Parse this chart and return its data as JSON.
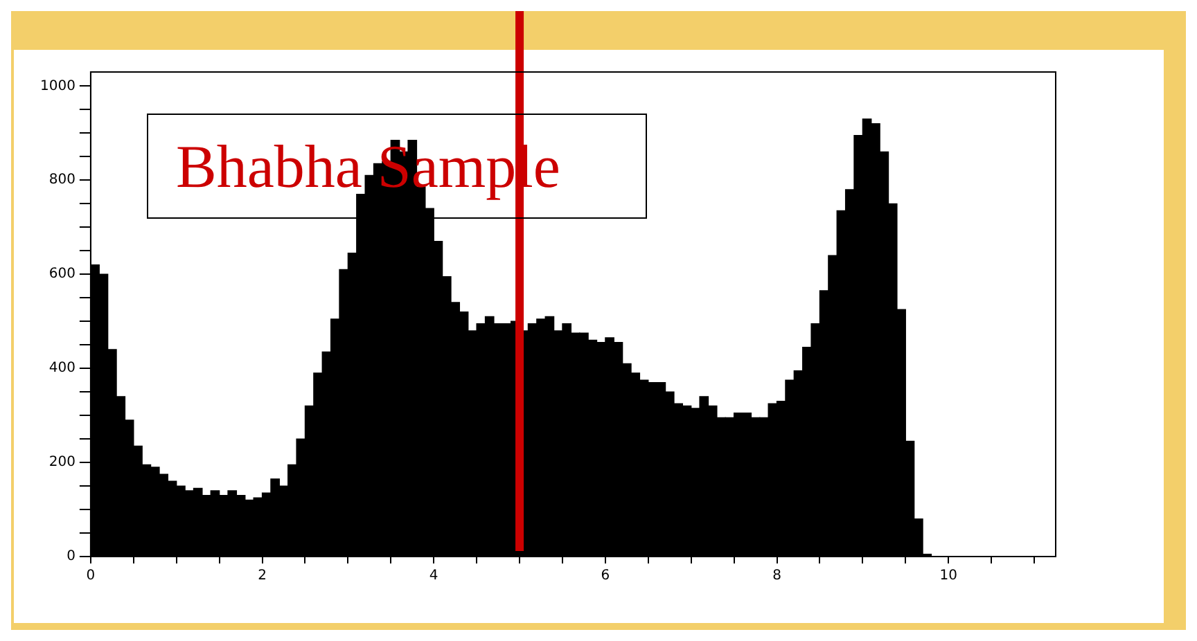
{
  "chart_data": {
    "type": "histogram",
    "annotations": [
      "Bhabha Sample"
    ],
    "bins": [
      0,
      0.1,
      0.2,
      0.3,
      0.4,
      0.5,
      0.6,
      0.7,
      0.8,
      0.9,
      1,
      1.1,
      1.2,
      1.3,
      1.4,
      1.5,
      1.6,
      1.7,
      1.8,
      1.9,
      2,
      2.1,
      2.2,
      2.3,
      2.4,
      2.5,
      2.6,
      2.7,
      2.8,
      2.9,
      3,
      3.1,
      3.2,
      3.3,
      3.4,
      3.5,
      3.6,
      3.7,
      3.8,
      3.9,
      4,
      4.1,
      4.2,
      4.3,
      4.4,
      4.5,
      4.6,
      4.7,
      4.8,
      4.9,
      5,
      5.1,
      5.2,
      5.3,
      5.4,
      5.5,
      5.6,
      5.7,
      5.8,
      5.9,
      6,
      6.1,
      6.2,
      6.3,
      6.4,
      6.5,
      6.6,
      6.7,
      6.8,
      6.9,
      7,
      7.1,
      7.2,
      7.3,
      7.4,
      7.5,
      7.6,
      7.7,
      7.8,
      7.9,
      8,
      8.1,
      8.2,
      8.3,
      8.4,
      8.5,
      8.6,
      8.7,
      8.8,
      8.9,
      9,
      9.1,
      9.2,
      9.3,
      9.4,
      9.5,
      9.6,
      9.7,
      9.8
    ],
    "values": [
      620,
      600,
      440,
      340,
      290,
      235,
      195,
      190,
      175,
      160,
      150,
      140,
      145,
      130,
      140,
      130,
      140,
      130,
      120,
      125,
      135,
      165,
      150,
      195,
      250,
      320,
      390,
      435,
      505,
      610,
      645,
      770,
      810,
      835,
      840,
      885,
      860,
      885,
      785,
      740,
      670,
      595,
      540,
      520,
      480,
      495,
      510,
      495,
      495,
      500,
      480,
      495,
      505,
      510,
      480,
      495,
      475,
      475,
      460,
      455,
      465,
      455,
      410,
      390,
      375,
      370,
      370,
      350,
      325,
      320,
      315,
      340,
      320,
      295,
      295,
      305,
      305,
      295,
      295,
      325,
      330,
      375,
      395,
      445,
      495,
      565,
      640,
      735,
      780,
      895,
      930,
      920,
      860,
      750,
      525,
      245,
      80,
      5
    ],
    "color": "#000000",
    "xlim": [
      0,
      11.25
    ],
    "ylim": [
      0,
      1030
    ],
    "xticks": [
      0,
      {
        "value": 0.5,
        "label": null
      },
      {
        "value": 1,
        "label": null
      },
      {
        "value": 1.5,
        "label": null
      },
      2,
      {
        "value": 2.5,
        "label": null
      },
      {
        "value": 3,
        "label": null
      },
      {
        "value": 3.5,
        "label": null
      },
      4,
      {
        "value": 4.5,
        "label": null
      },
      {
        "value": 5,
        "label": null
      },
      {
        "value": 5.5,
        "label": null
      },
      6,
      {
        "value": 6.5,
        "label": null
      },
      {
        "value": 7,
        "label": null
      },
      {
        "value": 7.5,
        "label": null
      },
      8,
      {
        "value": 8.5,
        "label": null
      },
      {
        "value": 9,
        "label": null
      },
      {
        "value": 9.5,
        "label": null
      },
      10,
      {
        "value": 10.5,
        "label": null
      },
      {
        "value": 11,
        "label": null
      }
    ],
    "yticks": [
      0,
      {
        "value": 50,
        "label": null
      },
      {
        "value": 100,
        "label": null
      },
      {
        "value": 150,
        "label": null
      },
      200,
      {
        "value": 250,
        "label": null
      },
      {
        "value": 300,
        "label": null
      },
      {
        "value": 350,
        "label": null
      },
      400,
      {
        "value": 450,
        "label": null
      },
      {
        "value": 500,
        "label": null
      },
      {
        "value": 550,
        "label": null
      },
      600,
      {
        "value": 650,
        "label": null
      },
      {
        "value": 700,
        "label": null
      },
      {
        "value": 750,
        "label": null
      },
      800,
      {
        "value": 850,
        "label": null
      },
      {
        "value": 900,
        "label": null
      },
      {
        "value": 950,
        "label": null
      },
      1000
    ],
    "ref_lines": [
      {
        "axis": "x",
        "value": 5,
        "label": null,
        "color": "#cc0000"
      }
    ],
    "grid": false,
    "legend": false
  }
}
